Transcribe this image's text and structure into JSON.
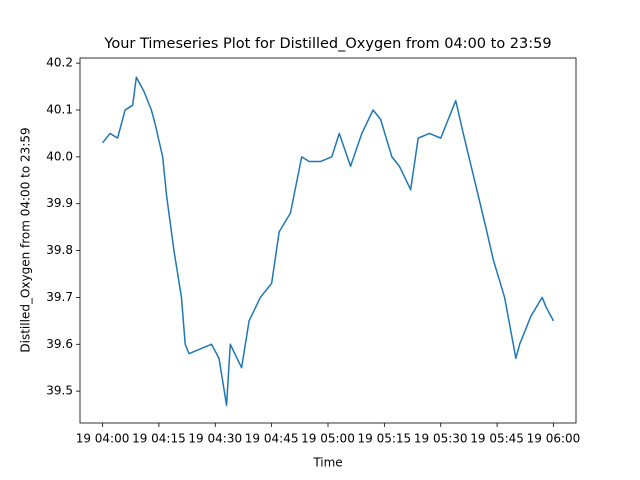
{
  "chart_data": {
    "type": "line",
    "title": "Your Timeseries Plot for Distilled_Oxygen from 04:00 to 23:59",
    "x_label": "Time",
    "y_label": "Distilled_Oxygen from 04:00 to 23:59",
    "series": [
      {
        "name": "Distilled_Oxygen",
        "color": "#1f77b4",
        "x": [
          "19 04:00",
          "19 04:02",
          "19 04:04",
          "19 04:06",
          "19 04:08",
          "19 04:09",
          "19 04:11",
          "19 04:13",
          "19 04:14",
          "19 04:16",
          "19 04:17",
          "19 04:19",
          "19 04:21",
          "19 04:22",
          "19 04:23",
          "19 04:26",
          "19 04:29",
          "19 04:31",
          "19 04:33",
          "19 04:34",
          "19 04:37",
          "19 04:39",
          "19 04:42",
          "19 04:45",
          "19 04:47",
          "19 04:50",
          "19 04:53",
          "19 04:55",
          "19 04:58",
          "19 05:01",
          "19 05:03",
          "19 05:06",
          "19 05:09",
          "19 05:12",
          "19 05:14",
          "19 05:17",
          "19 05:19",
          "19 05:22",
          "19 05:24",
          "19 05:27",
          "19 05:30",
          "19 05:34",
          "19 05:36",
          "19 05:39",
          "19 05:42",
          "19 05:44",
          "19 05:47",
          "19 05:50",
          "19 05:51",
          "19 05:54",
          "19 05:57",
          "19 05:58",
          "19 06:00"
        ],
        "values": [
          40.03,
          40.05,
          40.04,
          40.1,
          40.11,
          40.17,
          40.14,
          40.1,
          40.07,
          40.0,
          39.92,
          39.8,
          39.7,
          39.6,
          39.58,
          39.59,
          39.6,
          39.57,
          39.47,
          39.6,
          39.55,
          39.65,
          39.7,
          39.73,
          39.84,
          39.88,
          40.0,
          39.99,
          39.99,
          40.0,
          40.05,
          39.98,
          40.05,
          40.1,
          40.08,
          40.0,
          39.98,
          39.93,
          40.04,
          40.05,
          40.04,
          40.12,
          40.05,
          39.95,
          39.85,
          39.78,
          39.7,
          39.57,
          39.6,
          39.66,
          39.7,
          39.68,
          39.65
        ]
      }
    ],
    "xlim": [
      "19 03:54",
      "19 06:06"
    ],
    "xticks": [
      "19 04:00",
      "19 04:15",
      "19 04:30",
      "19 04:45",
      "19 05:00",
      "19 05:15",
      "19 05:30",
      "19 05:45",
      "19 06:00"
    ],
    "ylim": [
      39.432,
      40.211
    ],
    "yticks": [
      39.5,
      39.6,
      39.7,
      39.8,
      39.9,
      {
        "value": 40,
        "label": "40.0"
      },
      40.1,
      40.2
    ],
    "grid": false
  }
}
